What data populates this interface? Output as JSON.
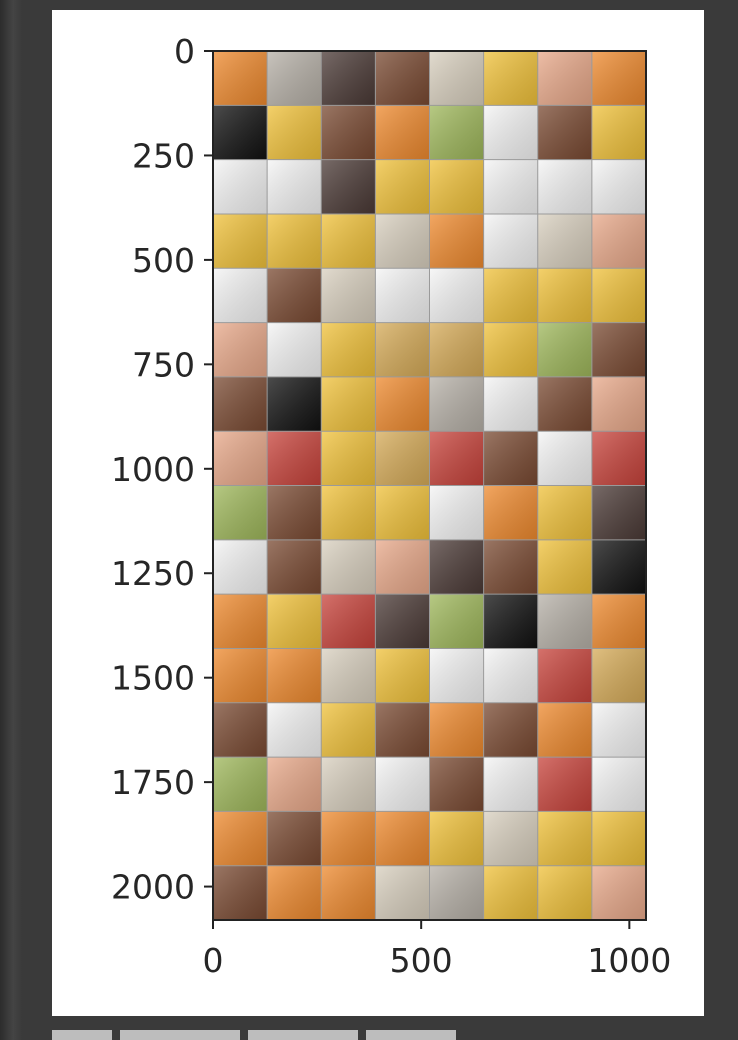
{
  "chart_data": {
    "type": "heatmap",
    "title": "",
    "xlabel": "",
    "ylabel": "",
    "xlim": [
      0,
      1040
    ],
    "ylim": [
      2080,
      0
    ],
    "y_inverted": true,
    "grid": false,
    "x_ticks": [
      {
        "value": 0,
        "label": "0"
      },
      {
        "value": 500,
        "label": "500"
      },
      {
        "value": 1000,
        "label": "1000"
      }
    ],
    "y_ticks": [
      {
        "value": 0,
        "label": "0"
      },
      {
        "value": 250,
        "label": "250"
      },
      {
        "value": 500,
        "label": "500"
      },
      {
        "value": 750,
        "label": "750"
      },
      {
        "value": 1000,
        "label": "1000"
      },
      {
        "value": 1250,
        "label": "1250"
      },
      {
        "value": 1500,
        "label": "1500"
      },
      {
        "value": 1750,
        "label": "1750"
      },
      {
        "value": 2000,
        "label": "2000"
      }
    ],
    "grid_layout": {
      "rows": 16,
      "cols": 8,
      "cell_size": 130
    },
    "tile_palette": {
      "O": "#ef8a2e",
      "Y": "#f1c23a",
      "W": "#f5f5f5",
      "K": "#111111",
      "R": "#c8433b",
      "B": "#7a4a32",
      "G": "#9fb85b",
      "S": "#b7b1a8",
      "P": "#e9a98a",
      "L": "#d9d0bf",
      "D": "#4b3a36",
      "M": "#d6ab58"
    },
    "tiles": [
      "OSDBLYPO",
      "KYBOGWBY",
      "WWDYYWWW",
      "YYYLOWLP",
      "WBLWWYYY",
      "PWYMMYGB",
      "BKYOSWBP",
      "PRYMRBWR",
      "GBYYWOYD",
      "WBLPDBYK",
      "OYRDGKSO",
      "OOLYWWRM",
      "BWYBOBOW",
      "GPLWBWRW",
      "OBOOYLYY",
      "BOOLSYYP"
    ]
  }
}
